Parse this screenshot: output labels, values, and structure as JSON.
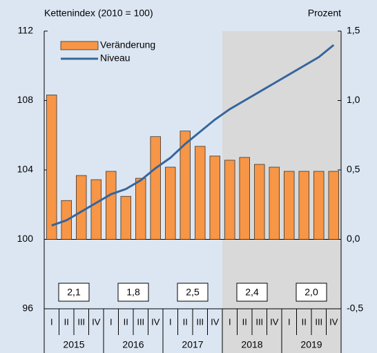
{
  "chart_data": {
    "type": "bar-line",
    "left_axis_label": "Kettenindex (2010 = 100)",
    "right_axis_label": "Prozent",
    "categories": [
      "I",
      "II",
      "III",
      "IV",
      "I",
      "II",
      "III",
      "IV",
      "I",
      "II",
      "III",
      "IV",
      "I",
      "II",
      "III",
      "IV",
      "I",
      "II",
      "III",
      "IV"
    ],
    "years": [
      "2015",
      "2016",
      "2017",
      "2018",
      "2019"
    ],
    "series": [
      {
        "name": "Veränderung",
        "type": "bar",
        "axis": "y2",
        "color": "#f79646",
        "values": [
          1.04,
          0.28,
          0.46,
          0.43,
          0.49,
          0.31,
          0.44,
          0.74,
          0.52,
          0.78,
          0.67,
          0.6,
          0.57,
          0.59,
          0.54,
          0.52,
          0.49,
          0.49,
          0.49,
          0.49
        ]
      },
      {
        "name": "Niveau",
        "type": "line",
        "color": "#36659c",
        "values": [
          100.8,
          101.1,
          101.6,
          102.1,
          102.6,
          102.9,
          103.4,
          104.1,
          104.7,
          105.5,
          106.2,
          106.9,
          107.5,
          108.0,
          108.5,
          109.0,
          109.5,
          110.0,
          110.5,
          111.2
        ]
      }
    ],
    "annual_growth": {
      "values": [
        2.1,
        1.8,
        2.5,
        2.4,
        2.0
      ],
      "value_labels": [
        "2,1",
        "1,8",
        "2,5",
        "2,4",
        "2,0"
      ]
    },
    "ylim": [
      96,
      112
    ],
    "yticks": [
      96,
      100,
      104,
      108,
      112
    ],
    "y2lim": [
      -0.5,
      1.5
    ],
    "y2ticks": [
      {
        "value": -0.5,
        "label": "-0,5"
      },
      {
        "value": 0,
        "label": "0,0"
      },
      {
        "value": 0.5,
        "label": "0,5"
      },
      {
        "value": 1,
        "label": "1,0"
      },
      {
        "value": 1.5,
        "label": "1,5"
      }
    ]
  }
}
